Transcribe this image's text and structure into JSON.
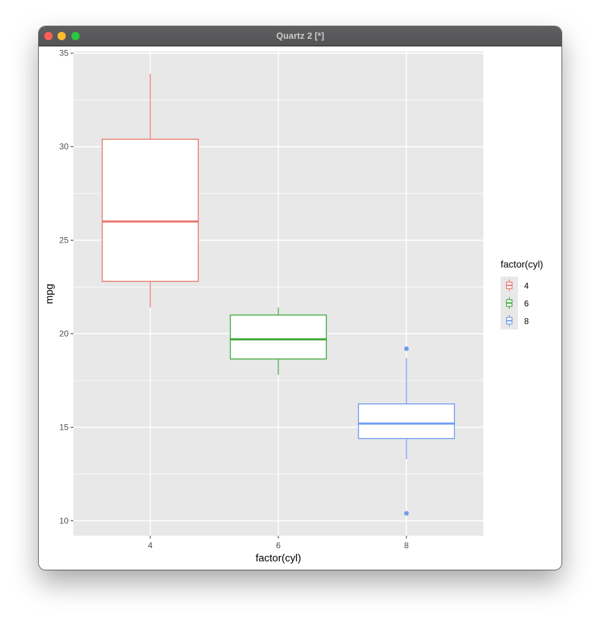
{
  "window": {
    "title": "Quartz 2 [*]"
  },
  "colors": {
    "panel_background": "#e8e8e8",
    "grid": "#ffffff",
    "series_4": "#e9766b",
    "series_6": "#3daa3a",
    "series_8": "#6e9bf2"
  },
  "chart_data": {
    "type": "boxplot",
    "title": "",
    "xlabel": "factor(cyl)",
    "ylabel": "mpg",
    "categories": [
      "4",
      "6",
      "8"
    ],
    "ylim": [
      9.2,
      35.1
    ],
    "y_ticks": [
      10,
      15,
      20,
      25,
      30,
      35
    ],
    "grid": true,
    "legend": {
      "title": "factor(cyl)",
      "position": "right",
      "entries": [
        "4",
        "6",
        "8"
      ]
    },
    "series": [
      {
        "category": "4",
        "color": "#e9766b",
        "whisker_low": 21.4,
        "q1": 22.8,
        "median": 26.0,
        "q3": 30.4,
        "whisker_high": 33.9,
        "outliers": []
      },
      {
        "category": "6",
        "color": "#3daa3a",
        "whisker_low": 17.8,
        "q1": 18.65,
        "median": 19.7,
        "q3": 21.0,
        "whisker_high": 21.4,
        "outliers": []
      },
      {
        "category": "8",
        "color": "#6e9bf2",
        "whisker_low": 13.3,
        "q1": 14.4,
        "median": 15.2,
        "q3": 16.25,
        "whisker_high": 18.7,
        "outliers": [
          19.2,
          10.4
        ]
      }
    ]
  }
}
